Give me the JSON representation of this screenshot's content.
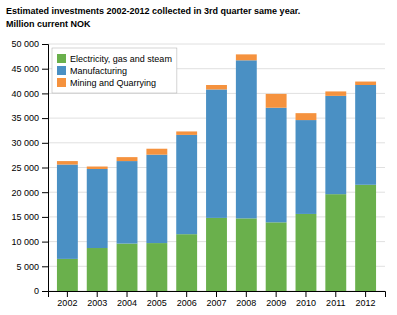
{
  "chart_data": {
    "type": "bar",
    "title": "Estimated investments 2002-2012 collected in 3rd quarter same year.",
    "subtitle": "Million current NOK",
    "categories": [
      "2002",
      "2003",
      "2004",
      "2005",
      "2006",
      "2007",
      "2008",
      "2009",
      "2010",
      "2011",
      "2012"
    ],
    "series": [
      {
        "name": "Electricity, gas and steam",
        "color": "#6ab04c",
        "values": [
          6500,
          8700,
          9600,
          9700,
          11500,
          14800,
          14700,
          13900,
          15600,
          19600,
          21500
        ]
      },
      {
        "name": "Manufacturing",
        "color": "#4a90c4",
        "values": [
          19100,
          16000,
          16700,
          17900,
          20100,
          26000,
          32000,
          23200,
          19000,
          19900,
          20200
        ]
      },
      {
        "name": "Mining and Quarrying",
        "color": "#f5923e",
        "values": [
          700,
          500,
          800,
          1200,
          700,
          900,
          1200,
          2800,
          1400,
          900,
          700
        ]
      }
    ],
    "stacked": true,
    "ylim": [
      0,
      50000
    ],
    "yticks": [
      0,
      {
        "value": 5000,
        "label": "5 000"
      },
      {
        "value": 10000,
        "label": "10 000"
      },
      {
        "value": 15000,
        "label": "15 000"
      },
      {
        "value": 20000,
        "label": "20 000"
      },
      {
        "value": 25000,
        "label": "25 000"
      },
      {
        "value": 30000,
        "label": "30 000"
      },
      {
        "value": 35000,
        "label": "35 000"
      },
      {
        "value": 40000,
        "label": "40 000"
      },
      {
        "value": 45000,
        "label": "45 000"
      },
      {
        "value": 50000,
        "label": "50 000"
      }
    ],
    "grid": true,
    "legend": "upper left"
  }
}
